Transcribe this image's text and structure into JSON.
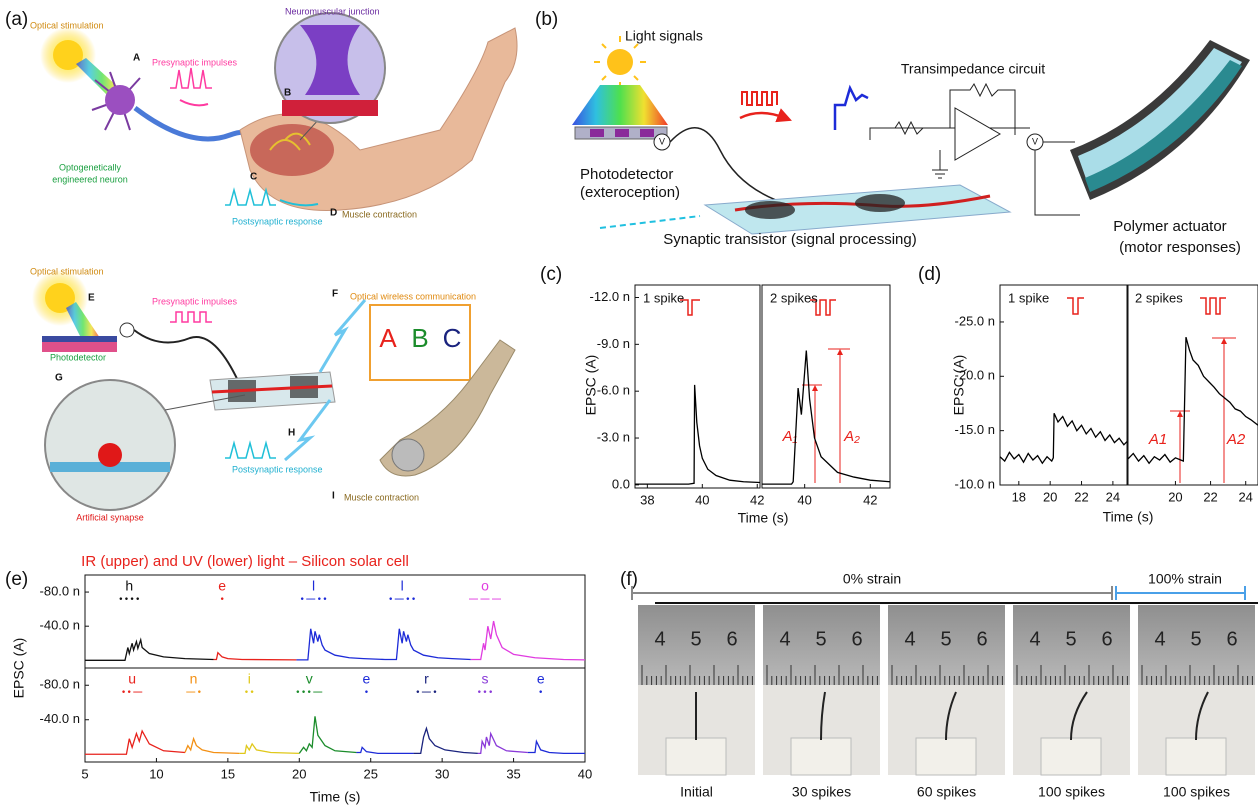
{
  "panel_labels": [
    "(a)",
    "(b)",
    "(c)",
    "(d)",
    "(e)",
    "(f)"
  ],
  "a": {
    "top": {
      "stimulus": "Optical stimulation",
      "A": "A",
      "presynaptic": "Presynaptic impulses",
      "junction": "Neuromuscular junction",
      "B": "B",
      "neuron": [
        "Optogenetically",
        "engineered neuron"
      ],
      "C": "C",
      "postsynaptic": "Postsynaptic response",
      "D": "D",
      "contraction": "Muscle contraction"
    },
    "bottom": {
      "stimulus": "Optical stimulation",
      "E": "E",
      "presynaptic": "Presynaptic impulses",
      "F": "F",
      "wireless": "Optical wireless communication",
      "letters": [
        "A",
        "B",
        "C"
      ],
      "photodetector": "Photodetector",
      "G": "G",
      "H": "H",
      "postsynaptic": "Postsynaptic response",
      "I": "I",
      "contraction": "Muscle contraction",
      "synapse": "Artificial synapse"
    }
  },
  "b": {
    "light": "Light signals",
    "circuit": "Transimpedance circuit",
    "meters": [
      "V",
      "V"
    ],
    "photodetector": [
      "Photodetector",
      "(exteroception)"
    ],
    "transistor": "Synaptic transistor (signal processing)",
    "actuator": [
      "Polymer actuator",
      "(motor responses)"
    ]
  },
  "chart_data": [
    {
      "type": "line",
      "ylabel": "EPSC (A)",
      "xlabel": "Time (s)",
      "annotations": [
        "1 spike"
      ],
      "xlim": [
        37.55,
        42.1
      ],
      "ylim": [
        0.2,
        -12.8
      ],
      "xticks": [
        38,
        40,
        42
      ],
      "yticks": [
        {
          "value": -12,
          "label": "-12.0 n"
        },
        {
          "value": -9,
          "label": "-9.0 n"
        },
        {
          "value": -6,
          "label": "-6.0 n"
        },
        {
          "value": -3,
          "label": "-3.0 n"
        },
        {
          "value": 0,
          "label": "0.0"
        }
      ],
      "series": [
        {
          "color": "#000000",
          "x": [
            37.55,
            39.5,
            39.7,
            39.72,
            39.8,
            39.9,
            40.0,
            40.2,
            40.5,
            41.0,
            41.5,
            42.1
          ],
          "values": [
            -0.05,
            -0.05,
            -0.1,
            -6.4,
            -4.0,
            -2.5,
            -1.7,
            -1.0,
            -0.6,
            -0.3,
            -0.2,
            -0.15
          ]
        }
      ]
    },
    {
      "type": "line",
      "annotations": [
        "2 spikes",
        "A₁",
        "A₂"
      ],
      "xlim": [
        38.7,
        42.6
      ],
      "ylim": [
        0.2,
        -12.8
      ],
      "xticks": [
        40,
        42
      ],
      "series": [
        {
          "color": "#000000",
          "x": [
            38.7,
            39.6,
            39.65,
            39.8,
            39.9,
            40.05,
            40.15,
            40.3,
            40.5,
            41.0,
            41.5,
            42.0,
            42.6
          ],
          "values": [
            -0.05,
            -0.05,
            -0.2,
            -6.2,
            -4.5,
            -8.6,
            -5.5,
            -3.0,
            -1.8,
            -0.8,
            -0.5,
            -0.3,
            -0.2
          ]
        }
      ]
    },
    {
      "type": "line",
      "ylabel": "EPSC (A)",
      "xlabel": "Time (s)",
      "annotations": [
        "1 spike"
      ],
      "xlim": [
        16.8,
        24.9
      ],
      "ylim": [
        -10,
        -28.4
      ],
      "xticks": [
        18,
        20,
        22,
        24
      ],
      "yticks": [
        {
          "value": -25,
          "label": "-25.0 n"
        },
        {
          "value": -20,
          "label": "-20.0 n"
        },
        {
          "value": -15,
          "label": "-15.0 n"
        },
        {
          "value": -10,
          "label": "-10.0 n"
        }
      ],
      "series": [
        {
          "color": "#000000",
          "x": [
            16.8,
            17.1,
            17.4,
            17.7,
            18.0,
            18.3,
            18.6,
            18.9,
            19.2,
            19.5,
            19.8,
            20.1,
            20.2,
            20.25,
            20.5,
            20.8,
            21.1,
            21.4,
            21.7,
            22.0,
            22.3,
            22.6,
            22.9,
            23.2,
            23.5,
            23.8,
            24.1,
            24.4,
            24.7,
            24.9
          ],
          "values": [
            -12.6,
            -12.2,
            -13.0,
            -12.4,
            -12.8,
            -12.1,
            -12.9,
            -12.3,
            -12.7,
            -12.0,
            -12.6,
            -12.2,
            -12.5,
            -16.6,
            -15.8,
            -16.3,
            -15.4,
            -15.9,
            -15.0,
            -15.5,
            -14.7,
            -15.2,
            -14.4,
            -14.9,
            -14.1,
            -14.6,
            -13.9,
            -14.3,
            -13.7,
            -14.0
          ]
        }
      ]
    },
    {
      "type": "line",
      "annotations": [
        "2 spikes",
        "A1",
        "A2"
      ],
      "xlim": [
        17.3,
        24.7
      ],
      "ylim": [
        -10,
        -28.4
      ],
      "xticks": [
        20,
        22,
        24
      ],
      "series": [
        {
          "color": "#000000",
          "x": [
            17.3,
            17.6,
            17.9,
            18.2,
            18.5,
            18.8,
            19.1,
            19.4,
            19.7,
            20.0,
            20.3,
            20.45,
            20.6,
            20.8,
            21.0,
            21.3,
            21.6,
            21.9,
            22.2,
            22.5,
            22.8,
            23.1,
            23.4,
            23.7,
            24.0,
            24.3,
            24.7
          ],
          "values": [
            -12.4,
            -12.9,
            -12.2,
            -12.7,
            -12.0,
            -12.6,
            -12.3,
            -12.8,
            -12.1,
            -12.5,
            -12.3,
            -12.2,
            -23.6,
            -22.4,
            -21.5,
            -21.0,
            -20.0,
            -19.5,
            -19.0,
            -18.4,
            -18.0,
            -17.6,
            -17.0,
            -16.8,
            -16.3,
            -16.0,
            -15.5
          ]
        }
      ]
    },
    {
      "type": "line",
      "title": "IR (upper) and UV (lower) light – Silicon solar cell",
      "ylabel": "EPSC (A)",
      "xlim": [
        5,
        40
      ],
      "ylim": [
        9,
        -100
      ],
      "yticks": [
        {
          "value": -80,
          "label": "-80.0 n"
        },
        {
          "value": -40,
          "label": "-40.0 n"
        }
      ],
      "series": [
        {
          "name": "h",
          "code": "• • • •",
          "color": "#111111",
          "x": [
            5,
            7.8,
            8.0,
            8.1,
            8.3,
            8.4,
            8.6,
            8.7,
            8.9,
            9.0,
            9.5,
            10.5,
            12,
            14.0
          ],
          "values": [
            0,
            0,
            -15,
            -8,
            -20,
            -12,
            -22,
            -14,
            -24,
            -15,
            -8,
            -4,
            -2,
            -1
          ]
        },
        {
          "name": "e",
          "code": "•",
          "color": "#e8221c",
          "x": [
            14.0,
            14.2,
            14.3,
            14.6,
            15,
            16,
            19.8
          ],
          "values": [
            -1,
            -1,
            -9,
            -4,
            -2,
            -1,
            -0.5
          ]
        },
        {
          "name": "l",
          "code": "• — • •",
          "color": "#1d2bd8",
          "x": [
            19.8,
            20.6,
            20.8,
            21.0,
            21.1,
            21.3,
            21.4,
            21.6,
            21.8,
            22.5,
            23.5,
            24.5,
            26.0
          ],
          "values": [
            -0.5,
            -0.5,
            -37,
            -20,
            -34,
            -22,
            -30,
            -18,
            -12,
            -6,
            -3,
            -2,
            -1
          ]
        },
        {
          "name": "l",
          "code": "• — • •",
          "color": "#1d2bd8",
          "x": [
            26.0,
            26.8,
            27.0,
            27.2,
            27.3,
            27.5,
            27.6,
            27.8,
            28.0,
            28.7,
            29.7,
            30.7,
            32.0
          ],
          "values": [
            -1,
            -1,
            -37,
            -20,
            -34,
            -22,
            -30,
            -18,
            -12,
            -6,
            -3,
            -2,
            -1
          ]
        },
        {
          "name": "o",
          "code": "— — —",
          "color": "#e03ce0",
          "x": [
            32.0,
            32.7,
            32.9,
            33.0,
            33.2,
            33.4,
            33.6,
            33.8,
            34.2,
            35,
            36.5,
            38.5,
            40
          ],
          "values": [
            -1,
            -1,
            -20,
            -12,
            -40,
            -25,
            -46,
            -30,
            -15,
            -7,
            -3,
            -1,
            -0.5
          ]
        }
      ]
    },
    {
      "type": "line",
      "xlabel": "Time (s)",
      "xlim": [
        5,
        40
      ],
      "ylim": [
        9,
        -100
      ],
      "xticks": [
        5,
        10,
        15,
        20,
        25,
        30,
        35,
        40
      ],
      "yticks": [
        {
          "value": -80,
          "label": "-80.0 n"
        },
        {
          "value": -40,
          "label": "-40.0 n"
        }
      ],
      "series": [
        {
          "name": "u",
          "code": "• • —",
          "color": "#e8221c",
          "x": [
            5,
            7.9,
            8.1,
            8.3,
            8.6,
            8.8,
            9.0,
            9.5,
            10.5,
            12.0
          ],
          "values": [
            0,
            0,
            -18,
            -8,
            -24,
            -15,
            -27,
            -12,
            -4,
            -2
          ]
        },
        {
          "name": "n",
          "code": "— •",
          "color": "#f39014",
          "x": [
            12.0,
            12.2,
            12.4,
            12.6,
            12.8,
            13.2,
            14,
            15.8
          ],
          "values": [
            -2,
            -10,
            -5,
            -18,
            -10,
            -5,
            -2,
            -1
          ]
        },
        {
          "name": "i",
          "code": "• •",
          "color": "#e0c81a",
          "x": [
            15.8,
            16.2,
            16.3,
            16.5,
            16.7,
            17,
            18,
            20.0
          ],
          "values": [
            -1,
            -1,
            -10,
            -5,
            -12,
            -5,
            -2,
            -1
          ]
        },
        {
          "name": "v",
          "code": "• • • —",
          "color": "#1b8c2b",
          "x": [
            20.0,
            20.3,
            20.5,
            20.7,
            20.9,
            21.1,
            21.3,
            21.8,
            22.5,
            24.0
          ],
          "values": [
            -1,
            -8,
            -4,
            -12,
            -8,
            -44,
            -22,
            -10,
            -4,
            -2
          ]
        },
        {
          "name": "e",
          "code": "•",
          "color": "#1d2bd8",
          "x": [
            24.0,
            24.3,
            24.4,
            24.7,
            25.5,
            28.0
          ],
          "values": [
            -2,
            -2,
            -8,
            -3,
            -1,
            -1
          ]
        },
        {
          "name": "r",
          "code": "• — •",
          "color": "#1a237e",
          "x": [
            28.0,
            28.5,
            28.7,
            28.9,
            29.1,
            29.5,
            30.2,
            31.5,
            32.5
          ],
          "values": [
            -1,
            -1,
            -20,
            -30,
            -18,
            -10,
            -5,
            -2,
            -1
          ]
        },
        {
          "name": "s",
          "code": "• • •",
          "color": "#8a3ad8",
          "x": [
            32.5,
            32.7,
            32.8,
            33.0,
            33.1,
            33.3,
            33.4,
            33.8,
            34.5,
            36.0
          ],
          "values": [
            -1,
            -1,
            -15,
            -8,
            -20,
            -10,
            -24,
            -10,
            -4,
            -2
          ]
        },
        {
          "name": "e",
          "code": "•",
          "color": "#1d2bd8",
          "x": [
            36.0,
            36.5,
            36.6,
            36.9,
            37.5,
            38.5,
            40
          ],
          "values": [
            -2,
            -2,
            -15,
            -5,
            -2,
            -1,
            -1
          ]
        }
      ]
    }
  ],
  "f": {
    "strain_labels": [
      "0% strain",
      "100% strain"
    ],
    "photos": [
      {
        "caption": "Initial",
        "ruler": [
          "4",
          "5",
          "6"
        ]
      },
      {
        "caption": "30 spikes",
        "ruler": [
          "4",
          "5",
          "6"
        ]
      },
      {
        "caption": "60 spikes",
        "ruler": [
          "4",
          "5",
          "6"
        ]
      },
      {
        "caption": "100 spikes",
        "ruler": [
          "4",
          "5",
          "6"
        ]
      },
      {
        "caption": "100 spikes",
        "ruler": [
          "4",
          "5",
          "6"
        ]
      }
    ]
  }
}
